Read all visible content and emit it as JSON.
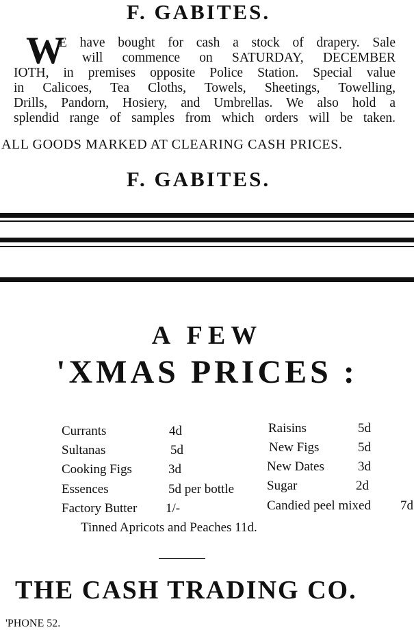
{
  "ad1": {
    "title": "F. GABITES.",
    "drop_cap": "W",
    "lines": [
      "E have bought for cash  a  stock of drapery.  Sale",
      "will commence on SATURDAY, DECEMBER",
      "IOTH, in premises opposite Police Station.  Special value",
      "in  Calicoes,  Tea Cloths,  Towels, Sheetings, Towelling,",
      "Drills, Pandorn, Hosiery, and Umbrellas.  We also hold a",
      "splendid range of samples from which orders will be taken."
    ],
    "notice": "ALL GOODS MARKED AT CLEARING CASH PRICES.",
    "signature": "F. GABITES."
  },
  "ad2": {
    "heading_line1": "A FEW",
    "heading_line2": "'XMAS PRICES :",
    "left_items": [
      {
        "name": "Currants",
        "price": "4d"
      },
      {
        "name": "Sultanas",
        "price": "5d"
      },
      {
        "name": "Cooking Figs",
        "price": "3d"
      },
      {
        "name": "Essences",
        "price": "5d per bottle"
      },
      {
        "name": "Factory Butter",
        "price": "1/-"
      }
    ],
    "right_items": [
      {
        "name": "Raisins",
        "price": "5d"
      },
      {
        "name": "New Figs",
        "price": "5d"
      },
      {
        "name": "New Dates",
        "price": "3d"
      },
      {
        "name": "Sugar",
        "price": "2d"
      },
      {
        "name": "Candied peel mixed",
        "price": "7d"
      }
    ],
    "footer_item": "Tinned  Apricots  and  Peaches  11d.",
    "company": "THE CASH TRADING CO.",
    "phone": "'PHONE  52."
  }
}
